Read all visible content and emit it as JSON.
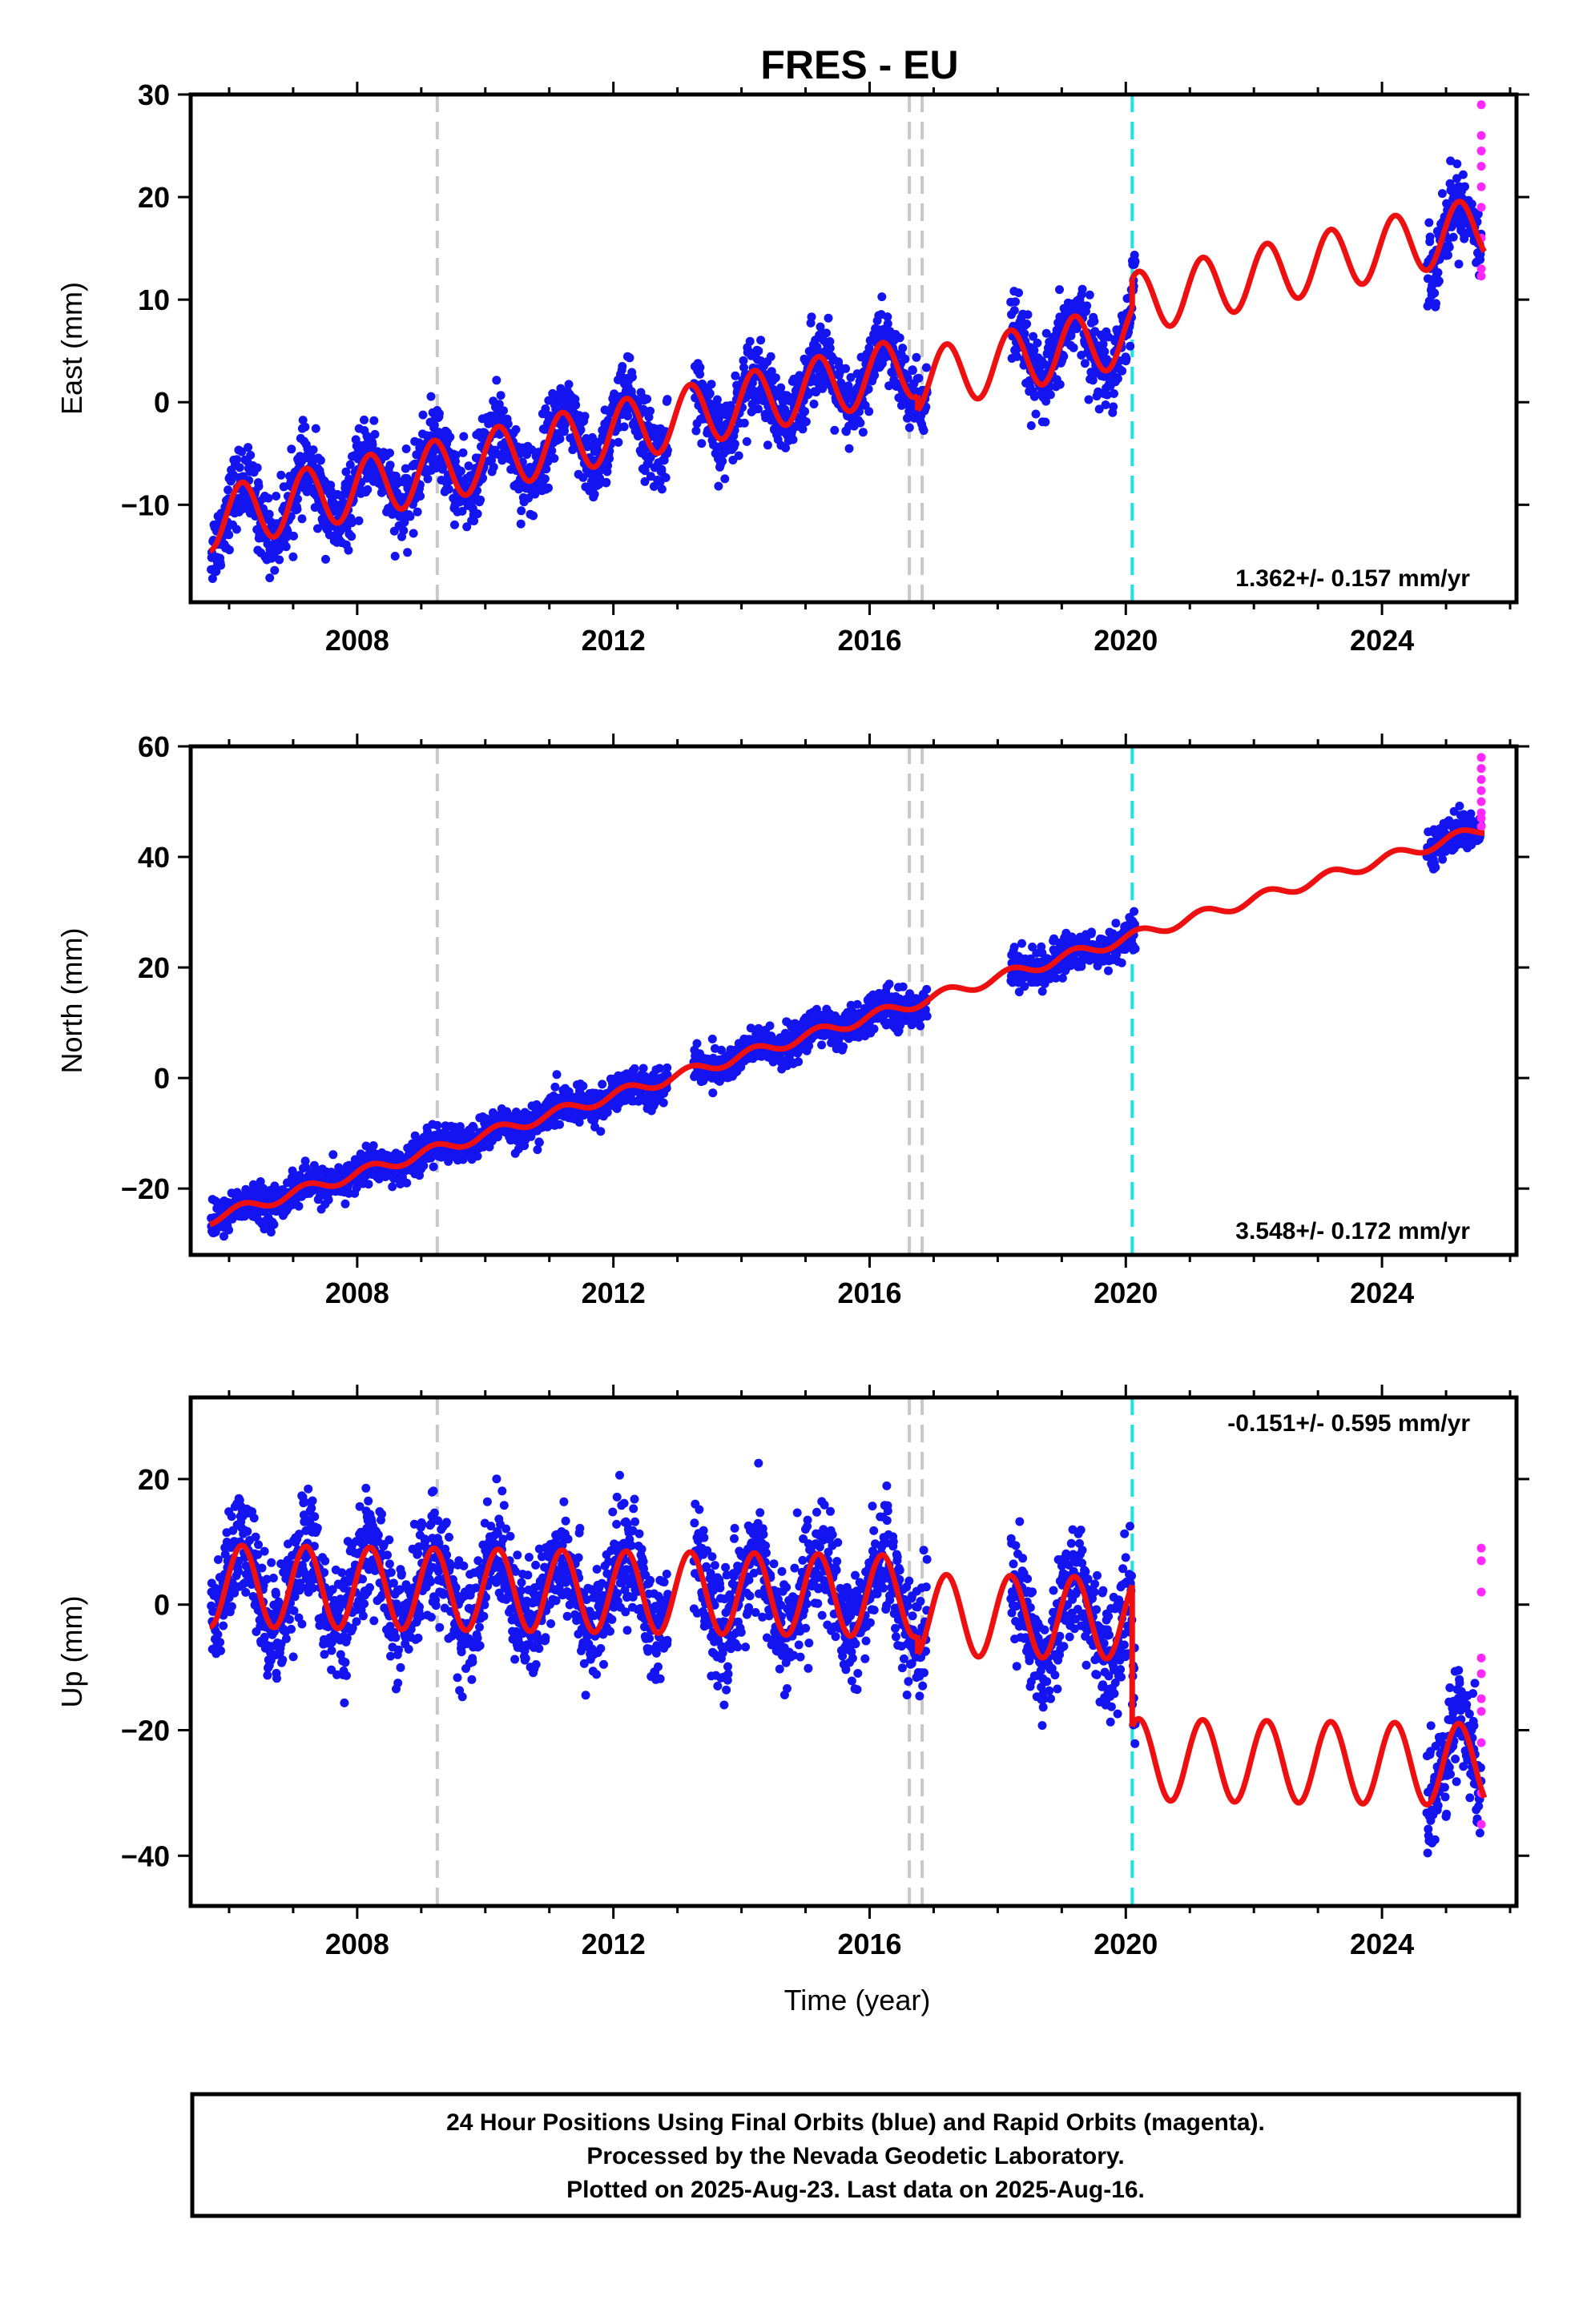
{
  "chart_data": {
    "type": "scatter",
    "title": "FRES - EU",
    "xlabel": "Time (year)",
    "xlim": [
      2005.4,
      2026.1
    ],
    "x_ticks": [
      2008,
      2012,
      2016,
      2020,
      2024
    ],
    "grid": false,
    "vertical_lines": [
      {
        "x": 2009.25,
        "color": "#c8c8c8",
        "style": "dashed"
      },
      {
        "x": 2016.62,
        "color": "#c8c8c8",
        "style": "dashed"
      },
      {
        "x": 2016.82,
        "color": "#c8c8c8",
        "style": "dashed"
      },
      {
        "x": 2020.1,
        "color": "#19e6e6",
        "style": "dashed"
      }
    ],
    "colors": {
      "final_orbits": "#1414f0",
      "rapid_orbits": "#ff28ff",
      "model_fit": "#ee1010"
    },
    "data_gaps": [
      [
        2012.85,
        2013.25
      ],
      [
        2016.9,
        2018.2
      ],
      [
        2020.15,
        2024.7
      ]
    ],
    "panels": [
      {
        "ylabel": "East (mm)",
        "ylim": [
          -19.5,
          30
        ],
        "y_ticks": [
          -10,
          0,
          10,
          20,
          30
        ],
        "rate_text": "1.362+/- 0.157 mm/yr",
        "rate_position": "bottom-right",
        "model": {
          "segments": [
            {
              "start": 2005.7,
              "end": 2016.75,
              "intercept_at_2005_7": -11.5,
              "slope": 1.362,
              "annual_amplitude": 3.0
            },
            {
              "start": 2016.75,
              "end": 2020.1,
              "intercept_at_2005_7": -13.0,
              "slope": 1.362,
              "annual_amplitude": 3.0
            },
            {
              "start": 2020.1,
              "end": 2025.6,
              "intercept_at_2005_7": -10.0,
              "slope": 1.362,
              "annual_amplitude": 3.0
            }
          ]
        },
        "scatter_sd": 1.8,
        "rapid_values": [
          29,
          26,
          24.5,
          23,
          21,
          19,
          16,
          13,
          12.3
        ]
      },
      {
        "ylabel": "North (mm)",
        "ylim": [
          -32,
          60
        ],
        "y_ticks": [
          -20,
          0,
          20,
          40,
          60
        ],
        "rate_text": "3.548+/- 0.172 mm/yr",
        "rate_position": "bottom-right",
        "model": {
          "segments": [
            {
              "start": 2005.7,
              "end": 2025.6,
              "intercept_at_2005_7": -25.5,
              "slope": 3.548,
              "annual_amplitude": 1.0
            }
          ]
        },
        "scatter_sd": 1.6,
        "rapid_values": [
          58,
          56,
          54,
          52,
          50,
          48,
          47,
          45.5
        ]
      },
      {
        "ylabel": "Up (mm)",
        "ylim": [
          -48,
          33
        ],
        "y_ticks": [
          -40,
          -20,
          0,
          20
        ],
        "rate_text": "-0.151+/- 0.595 mm/yr",
        "rate_position": "top-right",
        "model": {
          "segments": [
            {
              "start": 2005.7,
              "end": 2016.75,
              "intercept_at_2005_7": 3.0,
              "slope": -0.151,
              "annual_amplitude": 6.5
            },
            {
              "start": 2016.75,
              "end": 2020.1,
              "intercept_at_2005_7": 0.0,
              "slope": -0.151,
              "annual_amplitude": 6.5
            },
            {
              "start": 2020.1,
              "end": 2025.6,
              "intercept_at_2005_7": -22.5,
              "slope": -0.151,
              "annual_amplitude": 6.5
            }
          ]
        },
        "scatter_sd": 4.5,
        "rapid_values": [
          9,
          7,
          2,
          -8.5,
          -11,
          -15,
          -17,
          -22,
          -30,
          -35
        ]
      }
    ],
    "legend_text": [
      "24 Hour Positions Using Final Orbits (blue) and Rapid Orbits (magenta).",
      "Processed by the Nevada Geodetic Laboratory.",
      "Plotted on 2025-Aug-23. Last data on 2025-Aug-16."
    ]
  }
}
